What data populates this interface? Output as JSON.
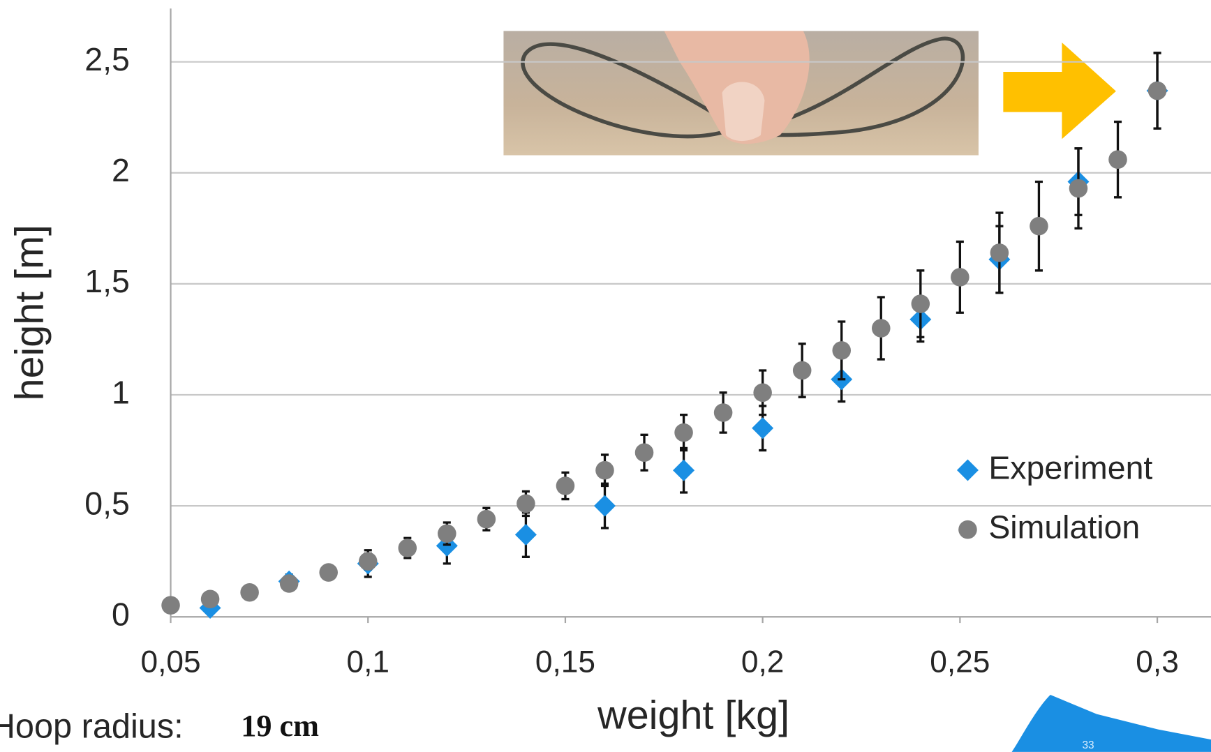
{
  "chart_data": {
    "type": "scatter",
    "x_label": "weight [kg]",
    "y_label": "height [m]",
    "xlim": [
      0.05,
      0.314
    ],
    "ylim": [
      0,
      2.74
    ],
    "xticks": [
      {
        "value": 0.05,
        "label": "0,05"
      },
      {
        "value": 0.1,
        "label": "0,1"
      },
      {
        "value": 0.15,
        "label": "0,15"
      },
      {
        "value": 0.2,
        "label": "0,2"
      },
      {
        "value": 0.25,
        "label": "0,25"
      },
      {
        "value": 0.3,
        "label": "0,3"
      }
    ],
    "yticks": [
      0,
      {
        "value": 0.5,
        "label": "0,5"
      },
      1,
      {
        "value": 1.5,
        "label": "1,5"
      },
      2,
      {
        "value": 2.5,
        "label": "2,5"
      }
    ],
    "grid": true,
    "series": [
      {
        "name": "Experiment",
        "color": "#1a8fe3",
        "marker": "diamond",
        "x": [
          0.06,
          0.08,
          0.1,
          0.12,
          0.14,
          0.16,
          0.18,
          0.2,
          0.22,
          0.24,
          0.26,
          0.28,
          0.3
        ],
        "values": [
          0.04,
          0.16,
          0.24,
          0.32,
          0.37,
          0.5,
          0.66,
          0.85,
          1.07,
          1.34,
          1.61,
          1.96,
          2.37
        ],
        "errors": [
          0.02,
          0.03,
          0.06,
          0.08,
          0.1,
          0.1,
          0.1,
          0.1,
          0.1,
          0.1,
          0.15,
          0.15,
          0.17
        ]
      },
      {
        "name": "Simulation",
        "color": "#7f7f7f",
        "marker": "circle",
        "x": [
          0.05,
          0.06,
          0.07,
          0.08,
          0.09,
          0.1,
          0.11,
          0.12,
          0.13,
          0.14,
          0.15,
          0.16,
          0.17,
          0.18,
          0.19,
          0.2,
          0.21,
          0.22,
          0.23,
          0.24,
          0.25,
          0.26,
          0.27,
          0.28,
          0.29,
          0.3
        ],
        "values": [
          0.052,
          0.08,
          0.11,
          0.15,
          0.2,
          0.25,
          0.31,
          0.375,
          0.44,
          0.51,
          0.59,
          0.66,
          0.74,
          0.83,
          0.92,
          1.01,
          1.11,
          1.2,
          1.3,
          1.41,
          1.53,
          1.64,
          1.76,
          1.93,
          2.06,
          2.37
        ],
        "errors": [
          0.01,
          0.015,
          0.02,
          0.025,
          0.03,
          0.035,
          0.045,
          0.05,
          0.05,
          0.055,
          0.06,
          0.07,
          0.08,
          0.08,
          0.09,
          0.1,
          0.12,
          0.13,
          0.14,
          0.15,
          0.16,
          0.18,
          0.2,
          0.18,
          0.17,
          0.17
        ]
      }
    ]
  },
  "footer": {
    "note_label": "Hoop radius:",
    "note_value": "19 cm",
    "page_number": "33"
  }
}
